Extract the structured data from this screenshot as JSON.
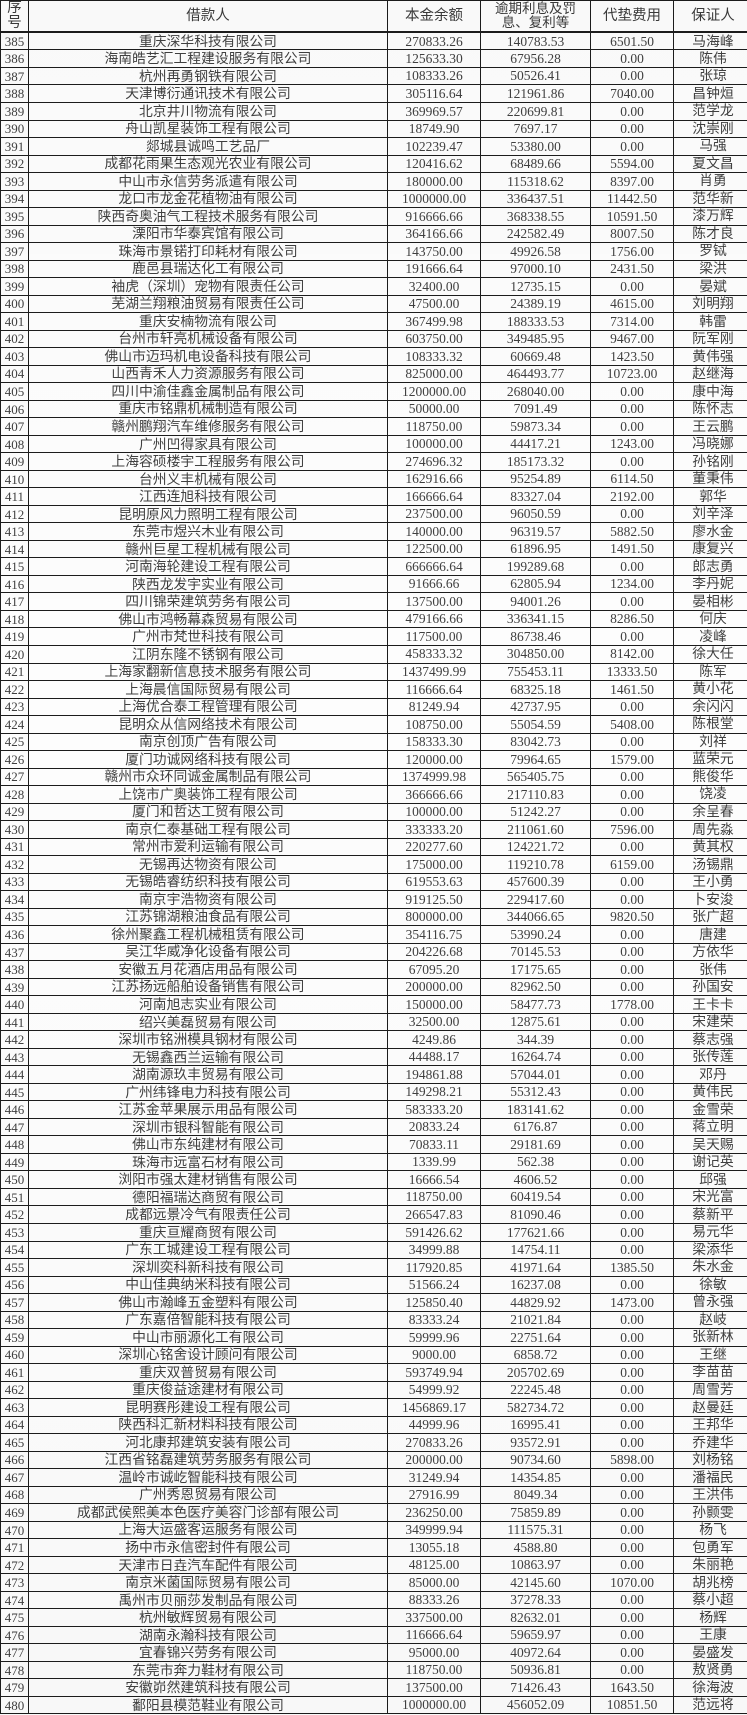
{
  "table": {
    "headers": [
      "序号",
      "借款人",
      "本金余额",
      "逾期利息及罚息、复利等",
      "代垫费用",
      "保证人"
    ],
    "rows": [
      [
        "385",
        "重庆深华科技有限公司",
        "270833.26",
        "140783.53",
        "6501.50",
        "马海峰"
      ],
      [
        "386",
        "海南皓艺汇工程建设服务有限公司",
        "125633.30",
        "67956.28",
        "0.00",
        "陈伟"
      ],
      [
        "387",
        "杭州再勇钢铁有限公司",
        "108333.26",
        "50526.41",
        "0.00",
        "张琼"
      ],
      [
        "388",
        "天津博衍通讯技术有限公司",
        "305116.64",
        "121961.86",
        "7040.00",
        "昌钟烜"
      ],
      [
        "389",
        "北京井川物流有限公司",
        "369969.57",
        "220699.81",
        "0.00",
        "范学龙"
      ],
      [
        "390",
        "舟山凯星装饰工程有限公司",
        "18749.90",
        "7697.17",
        "0.00",
        "沈崇刚"
      ],
      [
        "391",
        "郯城县诚鸣工艺品厂",
        "102239.47",
        "53380.00",
        "0.00",
        "马强"
      ],
      [
        "392",
        "成都花雨果生态观光农业有限公司",
        "120416.62",
        "68489.66",
        "5594.00",
        "夏文昌"
      ],
      [
        "393",
        "中山市永信劳务派遣有限公司",
        "180000.00",
        "115318.62",
        "8397.00",
        "肖勇"
      ],
      [
        "394",
        "龙口市龙金花植物油有限公司",
        "1000000.00",
        "336437.51",
        "11442.50",
        "范华新"
      ],
      [
        "395",
        "陕西奇奥油气工程技术服务有限公司",
        "916666.66",
        "368338.55",
        "10591.50",
        "漆万辉"
      ],
      [
        "396",
        "溧阳市华泰宾馆有限公司",
        "364166.66",
        "242582.49",
        "8007.50",
        "陈才良"
      ],
      [
        "397",
        "珠海市景锘打印耗材有限公司",
        "143750.00",
        "49926.58",
        "1756.00",
        "罗铽"
      ],
      [
        "398",
        "鹿邑县瑞达化工有限公司",
        "191666.64",
        "97000.10",
        "2431.50",
        "梁洪"
      ],
      [
        "399",
        "袖虎（深圳）宠物有限责任公司",
        "32400.00",
        "12735.15",
        "0.00",
        "晏斌"
      ],
      [
        "400",
        "芜湖兰翔粮油贸易有限责任公司",
        "47500.00",
        "24389.19",
        "4615.00",
        "刘明翔"
      ],
      [
        "401",
        "重庆安楠物流有限公司",
        "367499.98",
        "188333.53",
        "7314.00",
        "韩雷"
      ],
      [
        "402",
        "台州市轩亮机械设备有限公司",
        "603750.00",
        "349485.95",
        "9467.00",
        "阮军刚"
      ],
      [
        "403",
        "佛山市迈玛机电设备科技有限公司",
        "108333.32",
        "60669.48",
        "1423.50",
        "黄伟强"
      ],
      [
        "404",
        "山西青禾人力资源服务有限公司",
        "825000.00",
        "464493.77",
        "10723.00",
        "赵继海"
      ],
      [
        "405",
        "四川中渝佳鑫金属制品有限公司",
        "1200000.00",
        "268040.00",
        "0.00",
        "康中海"
      ],
      [
        "406",
        "重庆市铭鼎机械制造有限公司",
        "50000.00",
        "7091.49",
        "0.00",
        "陈怀志"
      ],
      [
        "407",
        "赣州鹏翔汽车维修服务有限公司",
        "118750.00",
        "59873.34",
        "0.00",
        "王云鹏"
      ],
      [
        "408",
        "广州凹得家具有限公司",
        "100000.00",
        "44417.21",
        "1243.00",
        "冯晓娜"
      ],
      [
        "409",
        "上海容硕楼宇工程服务有限公司",
        "274696.32",
        "185173.32",
        "0.00",
        "孙铭刚"
      ],
      [
        "410",
        "台州义丰机械有限公司",
        "162916.66",
        "95254.89",
        "6114.50",
        "董秉伟"
      ],
      [
        "411",
        "江西连旭科技有限公司",
        "166666.64",
        "83327.04",
        "2192.00",
        "郭华"
      ],
      [
        "412",
        "昆明原风力照明工程有限公司",
        "237500.00",
        "96050.59",
        "0.00",
        "刘辛泽"
      ],
      [
        "413",
        "东莞市煜兴木业有限公司",
        "140000.00",
        "96319.57",
        "5882.50",
        "廖水金"
      ],
      [
        "414",
        "赣州巨星工程机械有限公司",
        "122500.00",
        "61896.95",
        "1491.50",
        "康复兴"
      ],
      [
        "415",
        "河南海轮建设工程有限公司",
        "666666.64",
        "199289.68",
        "0.00",
        "郎志勇"
      ],
      [
        "416",
        "陕西龙发宇实业有限公司",
        "91666.66",
        "62805.94",
        "1234.00",
        "李丹妮"
      ],
      [
        "417",
        "四川锦荣建筑劳务有限公司",
        "137500.00",
        "94001.26",
        "0.00",
        "晏相彬"
      ],
      [
        "418",
        "佛山市鸿畅幕森贸易有限公司",
        "479166.66",
        "336341.15",
        "8286.50",
        "何庆"
      ],
      [
        "419",
        "广州市梵世科技有限公司",
        "117500.00",
        "86738.46",
        "0.00",
        "凌峰"
      ],
      [
        "420",
        "江阴东隆不锈钢有限公司",
        "458333.32",
        "304850.00",
        "8142.00",
        "徐大任"
      ],
      [
        "421",
        "上海家翻新信息技术服务有限公司",
        "1437499.99",
        "755453.11",
        "13333.50",
        "陈军"
      ],
      [
        "422",
        "上海晨信国际贸易有限公司",
        "116666.64",
        "68325.18",
        "1461.50",
        "黄小花"
      ],
      [
        "423",
        "上海优合泰工程管理有限公司",
        "81249.94",
        "42737.95",
        "0.00",
        "余闪闪"
      ],
      [
        "424",
        "昆明众从信网络技术有限公司",
        "108750.00",
        "55054.59",
        "5408.00",
        "陈根堂"
      ],
      [
        "425",
        "南京创顶广告有限公司",
        "158333.30",
        "83042.73",
        "0.00",
        "刘祥"
      ],
      [
        "426",
        "厦门功诚网络科技有限公司",
        "120000.00",
        "79964.65",
        "1579.00",
        "蓝荣元"
      ],
      [
        "427",
        "赣州市众环同诚金属制品有限公司",
        "1374999.98",
        "565405.75",
        "0.00",
        "熊俊华"
      ],
      [
        "428",
        "上饶市广奥装饰工程有限公司",
        "366666.66",
        "217110.83",
        "0.00",
        "饶凌"
      ],
      [
        "429",
        "厦门和哲达工贸有限公司",
        "100000.00",
        "51242.27",
        "0.00",
        "余呈春"
      ],
      [
        "430",
        "南京仁泰基础工程有限公司",
        "333333.20",
        "211061.60",
        "7596.00",
        "周先淼"
      ],
      [
        "431",
        "常州市爱利运输有限公司",
        "220277.60",
        "124221.72",
        "0.00",
        "黄其权"
      ],
      [
        "432",
        "无锡再达物资有限公司",
        "175000.00",
        "119210.78",
        "6159.00",
        "汤锡鼎"
      ],
      [
        "433",
        "无锡皓睿纺织科技有限公司",
        "619553.63",
        "457600.39",
        "0.00",
        "王小勇"
      ],
      [
        "434",
        "南京宇浩物资有限公司",
        "919125.50",
        "229417.60",
        "0.00",
        "卜安浚"
      ],
      [
        "435",
        "江苏锦湖粮油食品有限公司",
        "800000.00",
        "344066.65",
        "9820.50",
        "张广超"
      ],
      [
        "436",
        "徐州聚鑫工程机械租赁有限公司",
        "354116.75",
        "53990.24",
        "0.00",
        "唐建"
      ],
      [
        "437",
        "吴江华威净化设备有限公司",
        "204226.68",
        "70145.53",
        "0.00",
        "方依华"
      ],
      [
        "438",
        "安徽五月花酒店用品有限公司",
        "67095.20",
        "17175.65",
        "0.00",
        "张伟"
      ],
      [
        "439",
        "江苏扬远船舶设备销售有限公司",
        "200000.00",
        "82962.50",
        "0.00",
        "孙国安"
      ],
      [
        "440",
        "河南旭志实业有限公司",
        "150000.00",
        "58477.73",
        "1778.00",
        "王卡卡"
      ],
      [
        "441",
        "绍兴美磊贸易有限公司",
        "32500.00",
        "12875.61",
        "0.00",
        "宋建荣"
      ],
      [
        "442",
        "深圳市铭洲模具钢材有限公司",
        "4249.86",
        "344.39",
        "0.00",
        "蔡志强"
      ],
      [
        "443",
        "无锡鑫西兰运输有限公司",
        "44488.17",
        "16264.74",
        "0.00",
        "张传莲"
      ],
      [
        "444",
        "湖南源玖丰贸易有限公司",
        "194861.88",
        "57044.01",
        "0.00",
        "邓丹"
      ],
      [
        "445",
        "广州纬锋电力科技有限公司",
        "149298.21",
        "55312.43",
        "0.00",
        "黄伟民"
      ],
      [
        "446",
        "江苏金苹果展示用品有限公司",
        "583333.20",
        "183141.62",
        "0.00",
        "金雪荣"
      ],
      [
        "447",
        "深圳市银科智能有限公司",
        "20833.24",
        "6176.87",
        "0.00",
        "蒋立明"
      ],
      [
        "448",
        "佛山市东纯建材有限公司",
        "70833.11",
        "29181.69",
        "0.00",
        "吴天赐"
      ],
      [
        "449",
        "珠海市远富石材有限公司",
        "1339.99",
        "562.38",
        "0.00",
        "谢记英"
      ],
      [
        "450",
        "浏阳市强太建材销售有限公司",
        "16666.54",
        "4606.52",
        "0.00",
        "邱强"
      ],
      [
        "451",
        "德阳福瑞达商贸有限公司",
        "118750.00",
        "60419.54",
        "0.00",
        "宋光富"
      ],
      [
        "452",
        "成都远景冷气有限责任公司",
        "266547.83",
        "81090.46",
        "0.00",
        "蔡新平"
      ],
      [
        "453",
        "重庆亘耀商贸有限公司",
        "591426.62",
        "177621.66",
        "0.00",
        "易元华"
      ],
      [
        "454",
        "广东工城建设工程有限公司",
        "34999.88",
        "14754.11",
        "0.00",
        "梁添华"
      ],
      [
        "455",
        "深圳奕科新科技有限公司",
        "117920.85",
        "41971.64",
        "1385.50",
        "朱水金"
      ],
      [
        "456",
        "中山佳典纳米科技有限公司",
        "51566.24",
        "16237.08",
        "0.00",
        "徐敏"
      ],
      [
        "457",
        "佛山市瀚峰五金塑料有限公司",
        "125850.40",
        "44829.92",
        "1473.00",
        "曾永强"
      ],
      [
        "458",
        "广东嘉倍智能科技有限公司",
        "83333.24",
        "21021.84",
        "0.00",
        "赵岐"
      ],
      [
        "459",
        "中山市丽源化工有限公司",
        "59999.96",
        "22751.64",
        "0.00",
        "张新林"
      ],
      [
        "460",
        "深圳心铭舍设计顾问有限公司",
        "9000.00",
        "6858.72",
        "0.00",
        "王继"
      ],
      [
        "461",
        "重庆双普贸易有限公司",
        "593749.94",
        "205702.69",
        "0.00",
        "李苗苗"
      ],
      [
        "462",
        "重庆俊益途建材有限公司",
        "54999.92",
        "22245.48",
        "0.00",
        "周雪芳"
      ],
      [
        "463",
        "昆明赛彤建设工程有限公司",
        "1456869.17",
        "582734.72",
        "0.00",
        "赵曼廷"
      ],
      [
        "464",
        "陕西科汇新材料科技有限公司",
        "44999.96",
        "16995.41",
        "0.00",
        "王邦华"
      ],
      [
        "465",
        "河北康邦建筑安装有限公司",
        "270833.26",
        "93572.91",
        "0.00",
        "乔建华"
      ],
      [
        "466",
        "江西省铭磊建筑劳务服务有限公司",
        "200000.00",
        "90734.60",
        "5898.00",
        "刘杨铭"
      ],
      [
        "467",
        "温岭市诚屹智能科技有限公司",
        "31249.94",
        "14354.85",
        "0.00",
        "潘福民"
      ],
      [
        "468",
        "广州秀恩贸易有限公司",
        "27916.99",
        "8049.34",
        "0.00",
        "王洪伟"
      ],
      [
        "469",
        "成都武侯熙美本色医疗美容门诊部有限公司",
        "236250.00",
        "75859.89",
        "0.00",
        "孙颢雯"
      ],
      [
        "470",
        "上海大运盛客运服务有限公司",
        "349999.94",
        "111575.31",
        "0.00",
        "杨飞"
      ],
      [
        "471",
        "扬中市永信密封件有限公司",
        "13055.18",
        "4588.80",
        "0.00",
        "包勇军"
      ],
      [
        "472",
        "天津市日垚汽车配件有限公司",
        "48125.00",
        "10863.97",
        "0.00",
        "朱丽艳"
      ],
      [
        "473",
        "南京米菌国际贸易有限公司",
        "85000.00",
        "42145.60",
        "1070.00",
        "胡兆榜"
      ],
      [
        "474",
        "禹州市贝丽莎发制品有限公司",
        "88333.26",
        "37278.33",
        "0.00",
        "蔡小超"
      ],
      [
        "475",
        "杭州敏辉贸易有限公司",
        "337500.00",
        "82632.01",
        "0.00",
        "杨辉"
      ],
      [
        "476",
        "湖南永瀚科技有限公司",
        "116666.64",
        "59659.97",
        "0.00",
        "王康"
      ],
      [
        "477",
        "宜春锦兴劳务有限公司",
        "95000.00",
        "40972.64",
        "0.00",
        "晏盛发"
      ],
      [
        "478",
        "东莞市奔力鞋材有限公司",
        "118750.00",
        "50936.81",
        "0.00",
        "敖贤勇"
      ],
      [
        "479",
        "安徽峁然建筑科技有限公司",
        "137500.00",
        "71426.43",
        "1643.50",
        "徐海波"
      ],
      [
        "480",
        "鄱阳县模范鞋业有限公司",
        "1000000.00",
        "456052.09",
        "10851.50",
        "范远将"
      ]
    ]
  }
}
